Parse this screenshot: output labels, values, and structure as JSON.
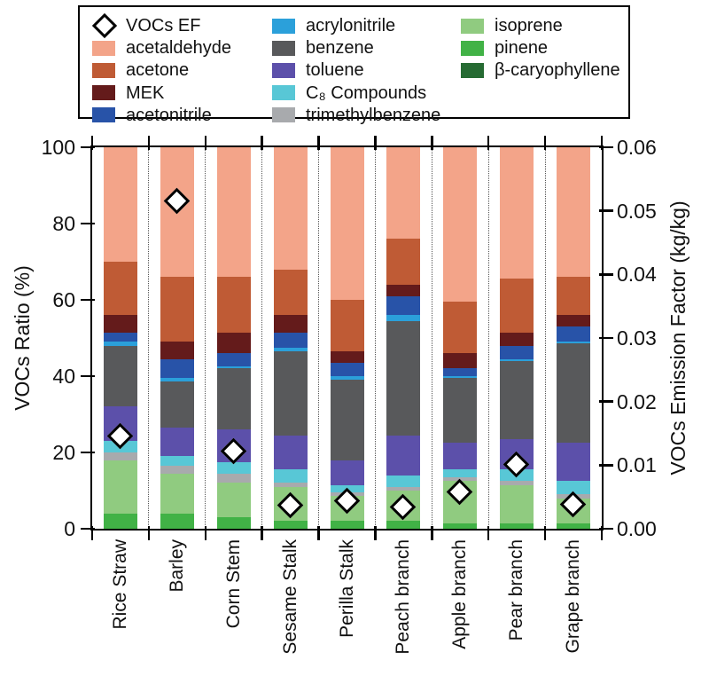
{
  "figure": {
    "left_axis_title": "VOCs Ratio (%)",
    "right_axis_title": "VOCs Emission Factor (kg/kg)"
  },
  "legend": {
    "columns": [
      [
        "VOCs EF",
        "acetaldehyde",
        "acetone",
        "MEK",
        "acetonitrile"
      ],
      [
        "acrylonitrile",
        "benzene",
        "toluene",
        "C₈ Compounds",
        "trimethylbenzene"
      ],
      [
        "isoprene",
        "pinene",
        "β-caryophyllene"
      ]
    ]
  },
  "chart_data": {
    "type": "bar",
    "subtype": "stacked-percent-with-scatter-overlay",
    "categories": [
      "Rice Straw",
      "Barley",
      "Corn Stem",
      "Sesame Stalk",
      "Perilla Stalk",
      "Peach branch",
      "Apple branch",
      "Pear branch",
      "Grape branch"
    ],
    "left_axis": {
      "label": "VOCs Ratio (%)",
      "ticks": [
        100,
        80,
        60,
        40,
        20,
        0
      ],
      "range": [
        0,
        100
      ]
    },
    "right_axis": {
      "label": "VOCs Emission Factor (kg/kg)",
      "ticks": [
        "0.06",
        "0.05",
        "0.04",
        "0.03",
        "0.02",
        "0.01",
        "0.00"
      ],
      "range": [
        0,
        0.06
      ]
    },
    "grid": "dotted-vertical-separators",
    "legend_position": "top-outside",
    "colors": {
      "acetaldehyde": "#F3A489",
      "acetone": "#BF5B35",
      "MEK": "#641B1B",
      "acetonitrile": "#2853A8",
      "acrylonitrile": "#2BA0DA",
      "benzene": "#58595B",
      "toluene": "#5C50AA",
      "C₈ Compounds": "#58C7D6",
      "trimethylbenzene": "#A8AAAD",
      "isoprene": "#90CB80",
      "pinene": "#41B246",
      "β-caryophyllene": "#266B33",
      "VOCs EF": "#FFFFFF"
    },
    "series": [
      {
        "name": "acetaldehyde",
        "values": [
          30,
          34,
          34,
          32,
          40,
          24,
          40.5,
          34.5,
          34
        ]
      },
      {
        "name": "acetone",
        "values": [
          14,
          17,
          14.5,
          12,
          13.5,
          12,
          13.5,
          14,
          10
        ]
      },
      {
        "name": "MEK",
        "values": [
          4.5,
          4.5,
          5.5,
          4.5,
          3,
          3,
          4,
          3.5,
          3
        ]
      },
      {
        "name": "acetonitrile",
        "values": [
          2.5,
          5,
          3.5,
          4,
          3.5,
          5,
          2,
          3.5,
          4
        ]
      },
      {
        "name": "acrylonitrile",
        "values": [
          1,
          1,
          0.5,
          1,
          1,
          1.5,
          0.5,
          0.5,
          0.5
        ]
      },
      {
        "name": "benzene",
        "values": [
          16,
          12,
          16,
          22,
          21,
          30,
          17,
          20.5,
          26
        ]
      },
      {
        "name": "toluene",
        "values": [
          9,
          7.5,
          8.5,
          9,
          6.5,
          10.5,
          7,
          8,
          10
        ]
      },
      {
        "name": "C₈ Compounds",
        "values": [
          3,
          2.5,
          3,
          3.5,
          2,
          3,
          2,
          3,
          3.5
        ]
      },
      {
        "name": "trimethylbenzene",
        "values": [
          2,
          2,
          2.5,
          1,
          1,
          1,
          1,
          1,
          1
        ]
      },
      {
        "name": "isoprene",
        "values": [
          14,
          10.5,
          9,
          9,
          6.5,
          8,
          11,
          10,
          6.5
        ]
      },
      {
        "name": "pinene",
        "values": [
          4,
          4,
          3,
          2,
          2,
          2,
          1.5,
          1.5,
          1.5
        ]
      },
      {
        "name": "β-caryophyllene",
        "values": [
          0,
          0,
          0,
          0,
          0,
          0,
          0,
          0,
          0
        ]
      }
    ],
    "scatter_series": {
      "name": "VOCs EF",
      "marker": "diamond",
      "axis": "right",
      "unit": "kg/kg",
      "values": [
        0.0145,
        0.0515,
        0.0121,
        0.0036,
        0.0043,
        0.0034,
        0.0057,
        0.0101,
        0.0038
      ]
    }
  }
}
